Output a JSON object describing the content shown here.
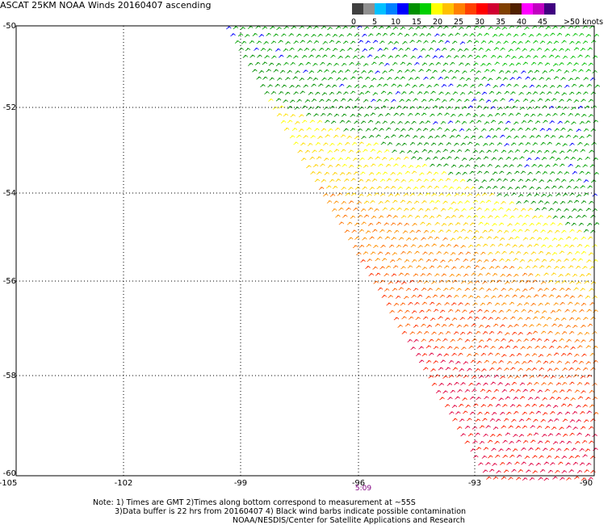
{
  "title": "ASCAT 25KM NOAA Winds 20160407 ascending",
  "legend": {
    "unit_label": ">50 knots",
    "ticks": [
      "0",
      "5",
      "10",
      "15",
      "20",
      "25",
      "30",
      "35",
      "40",
      "45"
    ],
    "colors": [
      "#404040",
      "#909090",
      "#00c0ff",
      "#0080ff",
      "#0000ff",
      "#009000",
      "#00d000",
      "#ffff00",
      "#ffc000",
      "#ff8000",
      "#ff4000",
      "#ff0000",
      "#d00030",
      "#804000",
      "#502000",
      "#ff00ff",
      "#c000c0",
      "#400080"
    ]
  },
  "axes": {
    "lat_labels": [
      "-50",
      "-52",
      "-54",
      "-56",
      "-58",
      "-60"
    ],
    "lon_labels": [
      "-105",
      "-102",
      "-99",
      "-96",
      "-93",
      "-90"
    ]
  },
  "time_label": "5:09",
  "notes": [
    "Note: 1) Times are GMT 2)Times along bottom correspond to measurement at ~55S",
    "3)Data buffer is 22 hrs from 20160407 4) Black wind barbs indicate possible contamination",
    "NOAA/NESDIS/Center for Satellite Applications and Research"
  ]
}
